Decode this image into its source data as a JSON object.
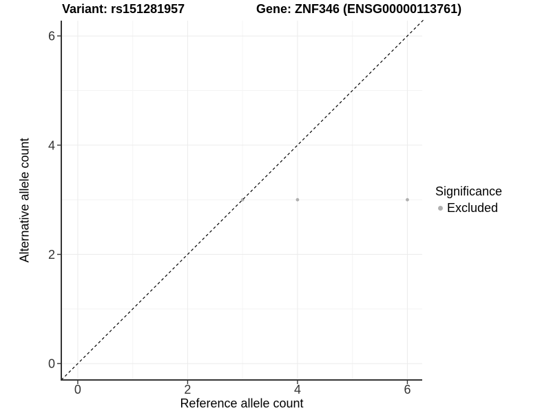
{
  "chart_data": {
    "type": "scatter",
    "titles": {
      "left": "Variant: rs151281957",
      "right": "Gene: ZNF346 (ENSG00000113761)"
    },
    "xlabel": "Reference allele count",
    "ylabel": "Alternative allele count",
    "xlim": [
      -0.3,
      6.27
    ],
    "ylim": [
      -0.3,
      6.28
    ],
    "x_major_ticks": [
      0,
      2,
      4,
      6
    ],
    "y_major_ticks": [
      0,
      2,
      4,
      6
    ],
    "x_minor_gridlines": [
      1,
      3,
      5
    ],
    "y_minor_gridlines": [
      1,
      3,
      5
    ],
    "grid": "on",
    "reference_line": {
      "kind": "identity y=x",
      "style": "dashed",
      "color": "#000000"
    },
    "series": [
      {
        "name": "Excluded",
        "marker": "circle",
        "color": "#b0b0b0",
        "points": [
          [
            3,
            3
          ],
          [
            4,
            3
          ],
          [
            6,
            3
          ]
        ]
      }
    ],
    "legend": {
      "title": "Significance",
      "position": "right-middle",
      "items": [
        {
          "label": "Excluded",
          "color": "#b0b0b0"
        }
      ]
    },
    "colors": {
      "background": "#ffffff",
      "grid_major": "#ebebeb",
      "grid_minor": "#f4f4f4",
      "axis_line": "#333333",
      "tick_label": "#333333",
      "text": "#000000"
    }
  }
}
